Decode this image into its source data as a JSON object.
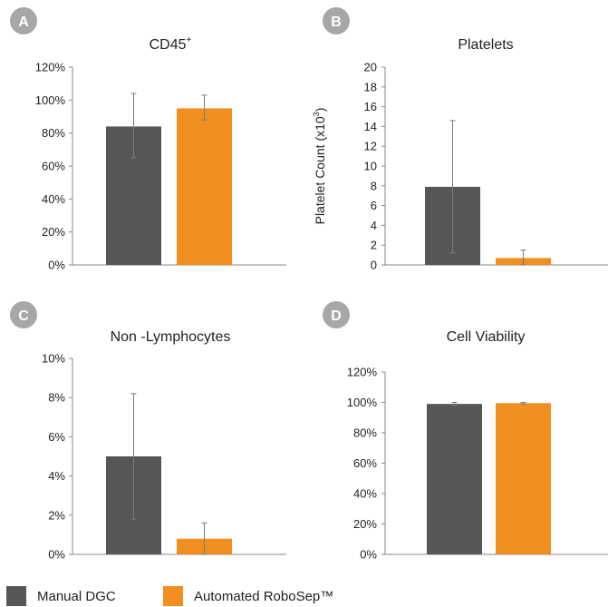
{
  "colors": {
    "manual": "#555756",
    "automated": "#f08f1f",
    "badge": "#a6a7a8",
    "axis": "#888888",
    "error": "#7a7a7a"
  },
  "legend": {
    "manual_label": "Manual DGC",
    "automated_label": "Automated RoboSep™"
  },
  "chart_data": [
    {
      "panel": "A",
      "type": "bar",
      "title": "CD45",
      "title_superscript": "+",
      "ylabel": "",
      "ylim": [
        0,
        120
      ],
      "ytick_format": "percent",
      "yticks": [
        0,
        20,
        40,
        60,
        80,
        100,
        120
      ],
      "tick_labels": [
        "0%",
        "20%",
        "40%",
        "60%",
        "80%",
        "100%",
        "120%"
      ],
      "series": [
        {
          "name": "Manual DGC",
          "value": 84,
          "err_low": 65,
          "err_high": 104
        },
        {
          "name": "Automated RoboSep™",
          "value": 95,
          "err_low": 88,
          "err_high": 103
        }
      ]
    },
    {
      "panel": "B",
      "type": "bar",
      "title": "Platelets",
      "title_superscript": "",
      "ylabel": "Platelet Count (x10",
      "ylabel_superscript": "3",
      "ylabel_suffix": ")",
      "ylim": [
        0,
        20
      ],
      "ytick_format": "number",
      "yticks": [
        0,
        2,
        4,
        6,
        8,
        10,
        12,
        14,
        16,
        18,
        20
      ],
      "tick_labels": [
        "0",
        "2",
        "4",
        "6",
        "8",
        "10",
        "12",
        "14",
        "16",
        "18",
        "20"
      ],
      "series": [
        {
          "name": "Manual DGC",
          "value": 7.9,
          "err_low": 1.2,
          "err_high": 14.6
        },
        {
          "name": "Automated RoboSep™",
          "value": 0.7,
          "err_low": 0.0,
          "err_high": 1.5
        }
      ]
    },
    {
      "panel": "C",
      "type": "bar",
      "title": "Non -Lymphocytes",
      "title_superscript": "",
      "ylabel": "",
      "ylim": [
        0,
        10
      ],
      "ytick_format": "percent",
      "yticks": [
        0,
        2,
        4,
        6,
        8,
        10
      ],
      "tick_labels": [
        "0%",
        "2%",
        "4%",
        "6%",
        "8%",
        "10%"
      ],
      "series": [
        {
          "name": "Manual DGC",
          "value": 5.0,
          "err_low": 1.8,
          "err_high": 8.2
        },
        {
          "name": "Automated RoboSep™",
          "value": 0.8,
          "err_low": 0.0,
          "err_high": 1.6
        }
      ]
    },
    {
      "panel": "D",
      "type": "bar",
      "title": "Cell Viability",
      "title_superscript": "",
      "ylabel": "",
      "ylim": [
        0,
        120
      ],
      "ytick_format": "percent",
      "yticks": [
        0,
        20,
        40,
        60,
        80,
        100,
        120
      ],
      "tick_labels": [
        "0%",
        "20%",
        "40%",
        "60%",
        "80%",
        "100%",
        "120%"
      ],
      "series": [
        {
          "name": "Manual DGC",
          "value": 99,
          "err_low": 98,
          "err_high": 100
        },
        {
          "name": "Automated RoboSep™",
          "value": 99.5,
          "err_low": 99,
          "err_high": 100
        }
      ]
    }
  ]
}
